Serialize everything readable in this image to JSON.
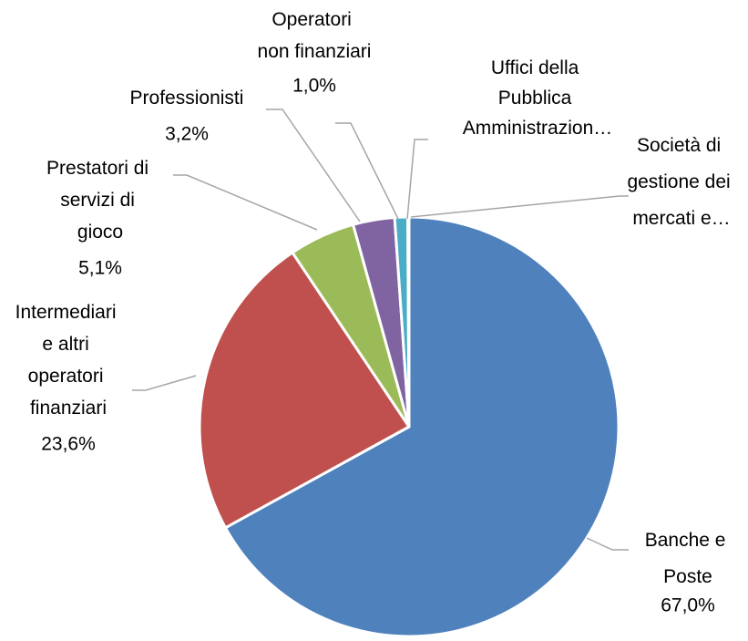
{
  "chart_data": {
    "type": "pie",
    "categories": [
      "Banche e Poste",
      "Intermediari e altri operatori finanziari",
      "Prestatori di servizi di gioco",
      "Professionisti",
      "Operatori non finanziari",
      "Uffici della Pubblica Amministrazion…",
      "Società di gestione dei mercati e…"
    ],
    "values": [
      67.0,
      23.6,
      5.1,
      3.2,
      1.0,
      0.08,
      0.02
    ],
    "value_labels": [
      "67,0%",
      "23,6%",
      "5,1%",
      "3,2%",
      "1,0%",
      null,
      null
    ],
    "colors": [
      "#4f81bd",
      "#c0504d",
      "#9bbb59",
      "#8064a2",
      "#4bacc6",
      "#f79646",
      "#2c4d75"
    ]
  }
}
